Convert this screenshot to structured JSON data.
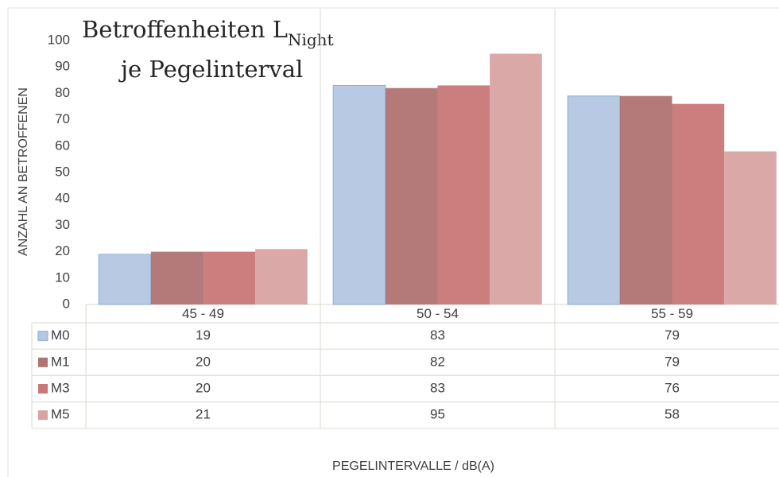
{
  "chart_data": {
    "type": "bar",
    "title": "Betroffenheiten L",
    "title_subscript": "Night",
    "title_line2": "je Pegelinterval",
    "y_label": "ANZAHL AN BETROFFENEN",
    "x_label": "PEGELINTERVALLE / dB(A)",
    "categories": [
      "45 - 49",
      "50 - 54",
      "55 - 59"
    ],
    "series": [
      {
        "name": "M0",
        "color": "#b4c7e2",
        "values": [
          19,
          83,
          79
        ]
      },
      {
        "name": "M1",
        "color": "#b07272",
        "values": [
          20,
          82,
          79
        ]
      },
      {
        "name": "M3",
        "color": "#c97777",
        "values": [
          20,
          83,
          76
        ]
      },
      {
        "name": "M5",
        "color": "#d9a3a3",
        "values": [
          21,
          95,
          58
        ]
      }
    ],
    "ylim": [
      0,
      100
    ],
    "yticks": [
      0,
      10,
      20,
      30,
      40,
      50,
      60,
      70,
      80,
      90,
      100
    ],
    "grid": false,
    "data_table": true
  }
}
